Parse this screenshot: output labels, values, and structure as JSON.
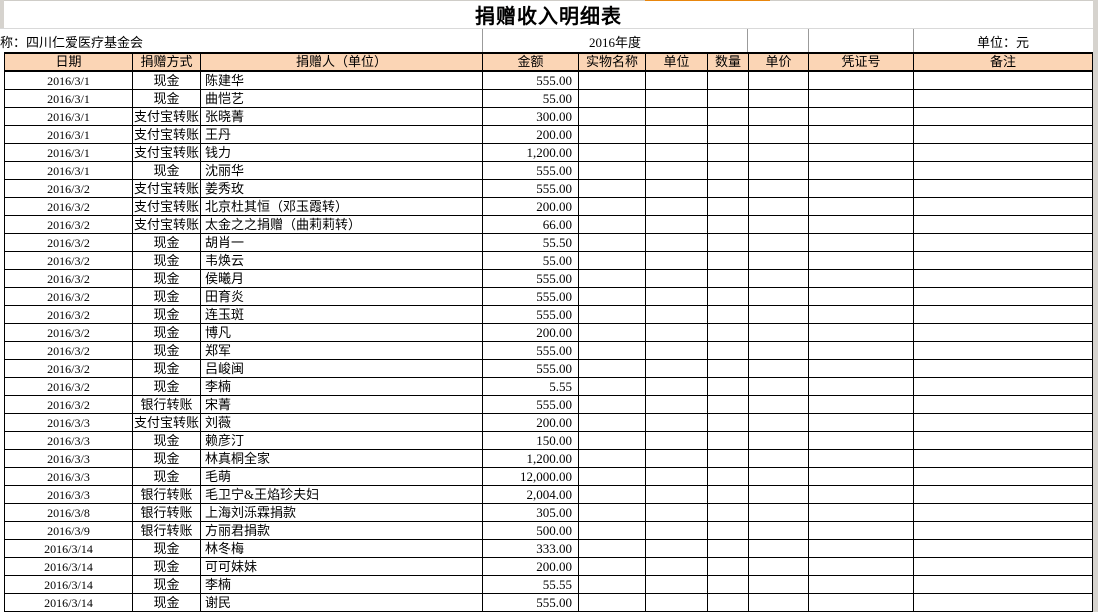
{
  "title": "捐赠收入明细表",
  "meta": {
    "org_label": "称：四川仁爱医疗基金会",
    "year_label": "2016年度",
    "unit_label": "单位：元"
  },
  "table": {
    "columns": [
      {
        "key": "date",
        "label": "日期"
      },
      {
        "key": "method",
        "label": "捐赠方式"
      },
      {
        "key": "donor",
        "label": "捐赠人（单位）"
      },
      {
        "key": "amount",
        "label": "金额"
      },
      {
        "key": "item_name",
        "label": "实物名称"
      },
      {
        "key": "unit",
        "label": "单位"
      },
      {
        "key": "qty",
        "label": "数量"
      },
      {
        "key": "unit_price",
        "label": "单价"
      },
      {
        "key": "voucher",
        "label": "凭证号"
      },
      {
        "key": "remarks",
        "label": "备注"
      }
    ],
    "rows": [
      {
        "date": "2016/3/1",
        "method": "现金",
        "donor": "陈建华",
        "amount": "555.00"
      },
      {
        "date": "2016/3/1",
        "method": "现金",
        "donor": "曲恺艺",
        "amount": "55.00"
      },
      {
        "date": "2016/3/1",
        "method": "支付宝转账",
        "donor": "张晓菁",
        "amount": "300.00"
      },
      {
        "date": "2016/3/1",
        "method": "支付宝转账",
        "donor": "王丹",
        "amount": "200.00"
      },
      {
        "date": "2016/3/1",
        "method": "支付宝转账",
        "donor": "钱力",
        "amount": "1,200.00"
      },
      {
        "date": "2016/3/1",
        "method": "现金",
        "donor": "沈丽华",
        "amount": "555.00"
      },
      {
        "date": "2016/3/2",
        "method": "支付宝转账",
        "donor": "姜秀玫",
        "amount": "555.00"
      },
      {
        "date": "2016/3/2",
        "method": "支付宝转账",
        "donor": "北京杜其恒（邓玉霞转）",
        "amount": "200.00"
      },
      {
        "date": "2016/3/2",
        "method": "支付宝转账",
        "donor": "太金之之捐赠（曲莉莉转）",
        "amount": "66.00"
      },
      {
        "date": "2016/3/2",
        "method": "现金",
        "donor": "胡肖一",
        "amount": "55.50"
      },
      {
        "date": "2016/3/2",
        "method": "现金",
        "donor": "韦焕云",
        "amount": "55.00"
      },
      {
        "date": "2016/3/2",
        "method": "现金",
        "donor": "侯曦月",
        "amount": "555.00"
      },
      {
        "date": "2016/3/2",
        "method": "现金",
        "donor": "田育炎",
        "amount": "555.00"
      },
      {
        "date": "2016/3/2",
        "method": "现金",
        "donor": "连玉斑",
        "amount": "555.00"
      },
      {
        "date": "2016/3/2",
        "method": "现金",
        "donor": "博凡",
        "amount": "200.00"
      },
      {
        "date": "2016/3/2",
        "method": "现金",
        "donor": "郑军",
        "amount": "555.00"
      },
      {
        "date": "2016/3/2",
        "method": "现金",
        "donor": "吕峻闽",
        "amount": "555.00"
      },
      {
        "date": "2016/3/2",
        "method": "现金",
        "donor": "李楠",
        "amount": "5.55"
      },
      {
        "date": "2016/3/2",
        "method": "银行转账",
        "donor": "宋菁",
        "amount": "555.00"
      },
      {
        "date": "2016/3/3",
        "method": "支付宝转账",
        "donor": "刘薇",
        "amount": "200.00"
      },
      {
        "date": "2016/3/3",
        "method": "现金",
        "donor": "赖彦汀",
        "amount": "150.00"
      },
      {
        "date": "2016/3/3",
        "method": "现金",
        "donor": "林真桐全家",
        "amount": "1,200.00"
      },
      {
        "date": "2016/3/3",
        "method": "现金",
        "donor": "毛萌",
        "amount": "12,000.00"
      },
      {
        "date": "2016/3/3",
        "method": "银行转账",
        "donor": "毛卫宁&王焰珍夫妇",
        "amount": "2,004.00"
      },
      {
        "date": "2016/3/8",
        "method": "银行转账",
        "donor": "上海刘泺霖捐款",
        "amount": "305.00"
      },
      {
        "date": "2016/3/9",
        "method": "银行转账",
        "donor": "方丽君捐款",
        "amount": "500.00"
      },
      {
        "date": "2016/3/14",
        "method": "现金",
        "donor": "林冬梅",
        "amount": "333.00"
      },
      {
        "date": "2016/3/14",
        "method": "现金",
        "donor": "可可妹妹",
        "amount": "200.00"
      },
      {
        "date": "2016/3/14",
        "method": "现金",
        "donor": "李楠",
        "amount": "55.55"
      },
      {
        "date": "2016/3/14",
        "method": "现金",
        "donor": "谢民",
        "amount": "555.00"
      }
    ]
  },
  "colors": {
    "header_bg": "#FBD5B5",
    "accent_strip": "#E8860D",
    "grid_border": "#000000"
  }
}
